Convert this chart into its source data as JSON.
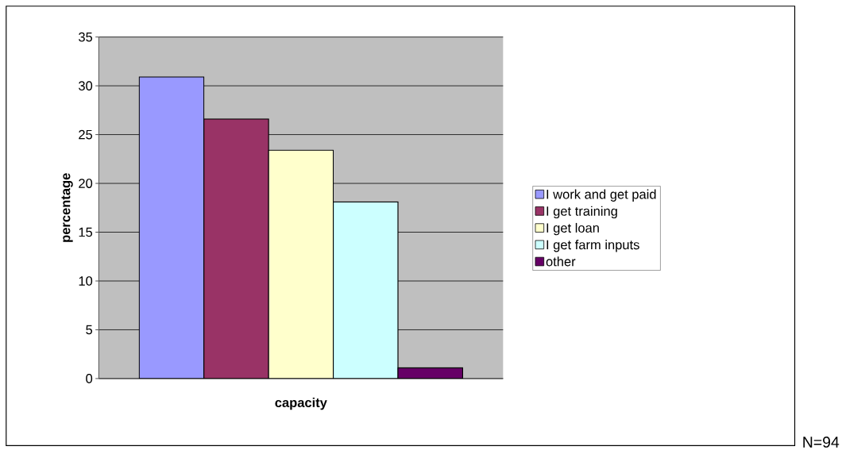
{
  "chart_data": {
    "type": "bar",
    "xlabel": "capacity",
    "ylabel": "percentage",
    "categories": [
      null
    ],
    "series": [
      {
        "name": "I  work and get paid",
        "color": "#9999ff",
        "values": [
          30.9
        ]
      },
      {
        "name": "I get training",
        "color": "#993366",
        "values": [
          26.6
        ]
      },
      {
        "name": "I get loan",
        "color": "#ffffcc",
        "values": [
          23.4
        ]
      },
      {
        "name": "I get farm inputs",
        "color": "#ccffff",
        "values": [
          18.1
        ]
      },
      {
        "name": "other",
        "color": "#660066",
        "values": [
          1.1
        ]
      }
    ],
    "ylim": [
      0,
      35
    ],
    "yticks": [
      0,
      5,
      10,
      15,
      20,
      25,
      30,
      35
    ],
    "grid": "y",
    "legend": "right",
    "annotations": [
      "N=94"
    ]
  }
}
